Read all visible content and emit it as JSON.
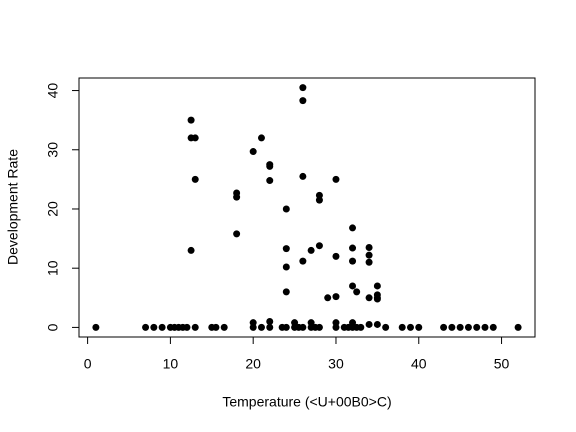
{
  "chart_data": {
    "type": "scatter",
    "x_label": "Temperature (<U+00B0>C)",
    "y_label": "Development Rate",
    "color": "#000000",
    "xlim": [
      -1.04,
      54.04
    ],
    "ylim": [
      -1.62,
      42.12
    ],
    "xticks": [
      0,
      10,
      20,
      30,
      40,
      50
    ],
    "yticks": [
      0,
      10,
      20,
      30,
      40
    ],
    "grid": false,
    "x": [
      1,
      7,
      8,
      9,
      10,
      10.5,
      11,
      11.5,
      12,
      13,
      15,
      15.5,
      16.5,
      20,
      20,
      21,
      22,
      22,
      23.5,
      24,
      25,
      25,
      25.5,
      26,
      27,
      27,
      27.5,
      28,
      30,
      30,
      31,
      31.5,
      32,
      32,
      32.5,
      33,
      34,
      35,
      36,
      38,
      39,
      40,
      43,
      44,
      45,
      46,
      47,
      48,
      49,
      52,
      12.5,
      12.5,
      13,
      13,
      12.5,
      18,
      18,
      18,
      20,
      21,
      22,
      22,
      22,
      24,
      24,
      24,
      24,
      26,
      26,
      26,
      26,
      27,
      28,
      28,
      28,
      29,
      30,
      30,
      30,
      32,
      32,
      32,
      32,
      32.5,
      34,
      34,
      34,
      34,
      35,
      35,
      35,
      35
    ],
    "y": [
      0,
      0,
      0,
      0,
      0,
      0,
      0,
      0,
      0,
      0,
      0,
      0,
      0,
      0,
      0.8,
      0,
      0,
      1,
      0,
      0,
      0,
      0.8,
      0,
      0,
      0,
      0.8,
      0,
      0,
      0,
      0.8,
      0,
      0,
      0,
      0.8,
      0,
      0,
      0.5,
      0.5,
      0,
      0,
      0,
      0,
      0,
      0,
      0,
      0,
      0,
      0,
      0,
      0,
      35,
      32,
      32,
      25,
      13,
      22.7,
      22,
      15.8,
      29.7,
      32,
      27.5,
      27.2,
      24.8,
      20,
      13.3,
      10.2,
      6,
      40.5,
      38.3,
      25.5,
      11.2,
      13,
      22.3,
      21.5,
      13.8,
      5,
      25,
      12,
      5.2,
      16.8,
      13.4,
      11.2,
      7,
      6,
      13.5,
      12.2,
      11,
      5,
      7,
      5.5,
      4.8,
      5
    ]
  }
}
